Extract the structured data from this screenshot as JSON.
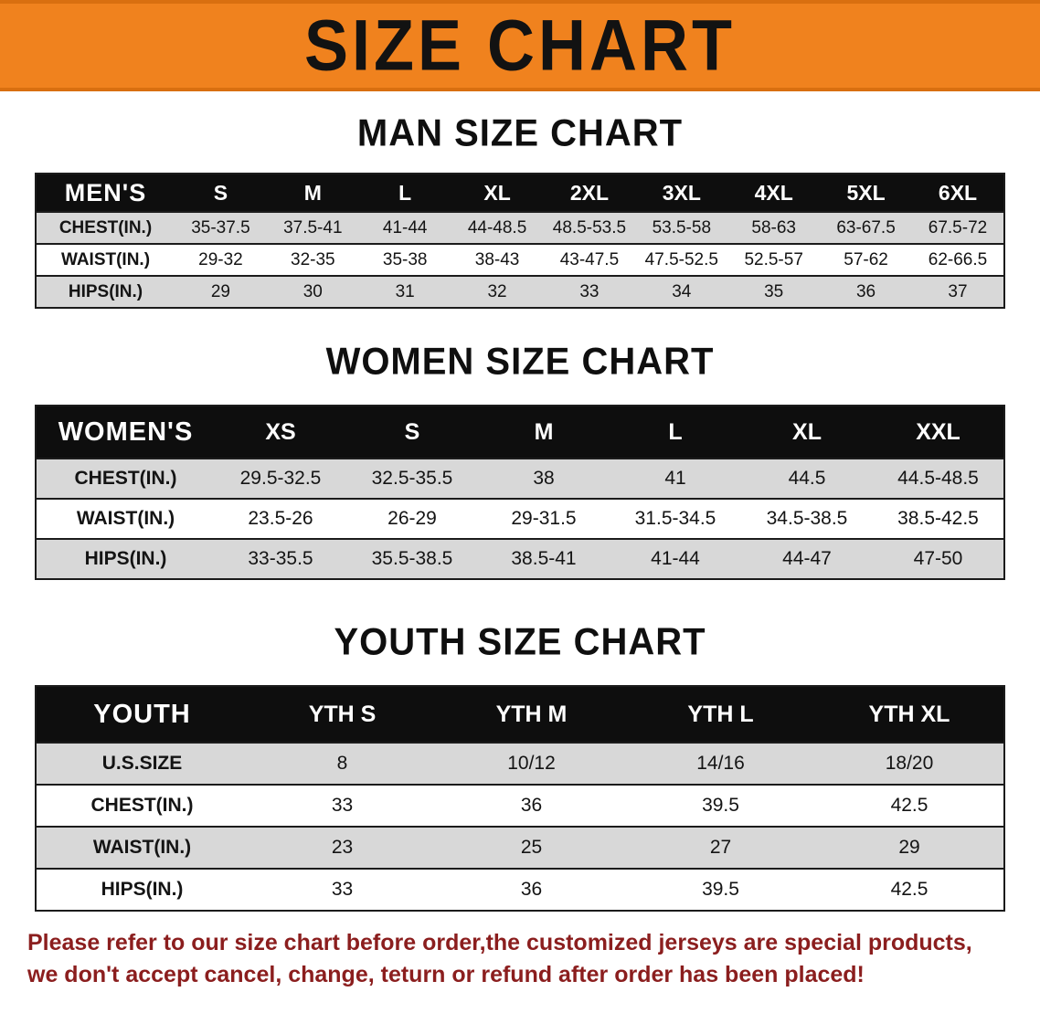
{
  "banner": {
    "title": "SIZE CHART",
    "bg_color": "#f0821e"
  },
  "sections": {
    "men": {
      "heading": "MAN SIZE CHART",
      "table": {
        "header": [
          "MEN'S",
          "S",
          "M",
          "L",
          "XL",
          "2XL",
          "3XL",
          "4XL",
          "5XL",
          "6XL"
        ],
        "rows": [
          {
            "label": "CHEST(IN.)",
            "values": [
              "35-37.5",
              "37.5-41",
              "41-44",
              "44-48.5",
              "48.5-53.5",
              "53.5-58",
              "58-63",
              "63-67.5",
              "67.5-72"
            ]
          },
          {
            "label": "WAIST(IN.)",
            "values": [
              "29-32",
              "32-35",
              "35-38",
              "38-43",
              "43-47.5",
              "47.5-52.5",
              "52.5-57",
              "57-62",
              "62-66.5"
            ]
          },
          {
            "label": "HIPS(IN.)",
            "values": [
              "29",
              "30",
              "31",
              "32",
              "33",
              "34",
              "35",
              "36",
              "37"
            ]
          }
        ]
      }
    },
    "women": {
      "heading": "WOMEN SIZE CHART",
      "table": {
        "header": [
          "WOMEN'S",
          "XS",
          "S",
          "M",
          "L",
          "XL",
          "XXL"
        ],
        "rows": [
          {
            "label": "CHEST(IN.)",
            "values": [
              "29.5-32.5",
              "32.5-35.5",
              "38",
              "41",
              "44.5",
              "44.5-48.5"
            ]
          },
          {
            "label": "WAIST(IN.)",
            "values": [
              "23.5-26",
              "26-29",
              "29-31.5",
              "31.5-34.5",
              "34.5-38.5",
              "38.5-42.5"
            ]
          },
          {
            "label": "HIPS(IN.)",
            "values": [
              "33-35.5",
              "35.5-38.5",
              "38.5-41",
              "41-44",
              "44-47",
              "47-50"
            ]
          }
        ]
      }
    },
    "youth": {
      "heading": "YOUTH SIZE CHART",
      "table": {
        "header": [
          "YOUTH",
          "YTH S",
          "YTH M",
          "YTH L",
          "YTH XL"
        ],
        "rows": [
          {
            "label": "U.S.SIZE",
            "values": [
              "8",
              "10/12",
              "14/16",
              "18/20"
            ]
          },
          {
            "label": "CHEST(IN.)",
            "values": [
              "33",
              "36",
              "39.5",
              "42.5"
            ]
          },
          {
            "label": "WAIST(IN.)",
            "values": [
              "23",
              "25",
              "27",
              "29"
            ]
          },
          {
            "label": "HIPS(IN.)",
            "values": [
              "33",
              "36",
              "39.5",
              "42.5"
            ]
          }
        ]
      }
    }
  },
  "footer": {
    "line1": "Please refer to our size chart before order,the customized jerseys are special products,",
    "line2": "we don't accept cancel, change, teturn or refund after order has been placed!",
    "color": "#8b1e1e"
  }
}
